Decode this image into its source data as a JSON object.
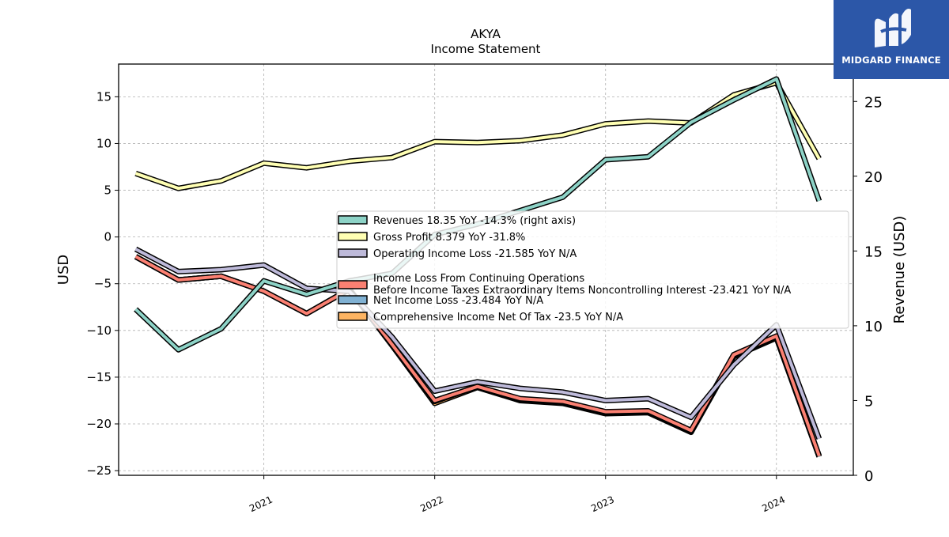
{
  "brand": {
    "name": "MIDGARD FINANCE",
    "color": "#2c57a8",
    "icon": "midgard-logo-icon"
  },
  "chart_data": {
    "type": "line",
    "title": "AKYA",
    "subtitle": "Income Statement",
    "ylabel": "USD",
    "ylabel_right": "Revenue (USD)",
    "xlabel": "",
    "ylim": [
      -25.5,
      18.5
    ],
    "ylim_right": [
      0,
      27.5
    ],
    "yticks": [
      -25,
      -20,
      -15,
      -10,
      -5,
      0,
      5,
      10,
      15
    ],
    "yticks_right": [
      0,
      5,
      10,
      15,
      20,
      25
    ],
    "xlim": [
      2020.15,
      2024.45
    ],
    "xticks": [
      {
        "x": 2021.0,
        "label": "2021"
      },
      {
        "x": 2022.0,
        "label": "2022"
      },
      {
        "x": 2023.0,
        "label": "2023"
      },
      {
        "x": 2024.0,
        "label": "2024"
      }
    ],
    "x": [
      2020.25,
      2020.5,
      2020.75,
      2021.0,
      2021.25,
      2021.5,
      2021.75,
      2022.0,
      2022.25,
      2022.5,
      2022.75,
      2023.0,
      2023.25,
      2023.5,
      2023.75,
      2024.0,
      2024.25
    ],
    "grid": true,
    "legend_position": "center-right",
    "series": [
      {
        "name": "Revenues",
        "legend": "Revenues  18.35 YoY -14.3% (right axis)",
        "color": "#8dd3c7",
        "axis": "right",
        "values": [
          11.1,
          8.4,
          9.8,
          13.0,
          12.1,
          13.0,
          13.5,
          16.1,
          16.8,
          17.7,
          18.6,
          21.1,
          21.3,
          23.6,
          25.1,
          26.5,
          18.35
        ]
      },
      {
        "name": "Gross Profit",
        "legend": "Gross Profit  8.379 YoY -31.8%",
        "color": "#ffffb3",
        "axis": "left",
        "values": [
          6.8,
          5.2,
          6.0,
          7.9,
          7.4,
          8.1,
          8.5,
          10.2,
          10.1,
          10.3,
          10.9,
          12.1,
          12.4,
          12.2,
          15.2,
          16.5,
          8.379
        ]
      },
      {
        "name": "Operating Income Loss",
        "legend": "Operating Income Loss  -21.585 YoY N/A",
        "color": "#bebada",
        "axis": "left",
        "values": [
          -1.3,
          -3.7,
          -3.5,
          -3.0,
          -5.5,
          -5.8,
          -10.7,
          -16.5,
          -15.5,
          -16.2,
          -16.6,
          -17.5,
          -17.3,
          -19.3,
          -13.7,
          -9.4,
          -21.585
        ]
      },
      {
        "name": "Income Loss From Continuing Operations Before Income Taxes Extraordinary Items Noncontrolling Interest",
        "legend": "Income Loss From Continuing Operations\nBefore Income Taxes Extraordinary Items Noncontrolling Interest  -23.421 YoY N/A",
        "color": "#fb8072",
        "axis": "left",
        "values": [
          -2.1,
          -4.6,
          -4.2,
          -5.8,
          -8.2,
          -5.6,
          -11.5,
          -17.5,
          -16.0,
          -17.3,
          -17.6,
          -18.7,
          -18.6,
          -20.7,
          -12.6,
          -10.6,
          -23.421
        ]
      },
      {
        "name": "Net Income Loss",
        "legend": "Net Income Loss  -23.484 YoY N/A",
        "color": "#80b1d3",
        "axis": "left",
        "values": [
          -2.1,
          -4.6,
          -4.2,
          -5.8,
          -8.2,
          -5.6,
          -11.5,
          -17.6,
          -16.0,
          -17.4,
          -17.7,
          -18.8,
          -18.7,
          -20.8,
          -12.7,
          -10.7,
          -23.484
        ]
      },
      {
        "name": "Comprehensive Income Net Of Tax",
        "legend": "Comprehensive Income Net Of Tax  -23.5 YoY N/A",
        "color": "#fdb462",
        "axis": "left",
        "values": [
          -2.1,
          -4.6,
          -4.2,
          -5.8,
          -8.2,
          -5.6,
          -11.6,
          -17.8,
          -16.1,
          -17.5,
          -17.8,
          -18.9,
          -18.8,
          -20.9,
          -12.8,
          -10.8,
          -23.5
        ]
      }
    ]
  }
}
